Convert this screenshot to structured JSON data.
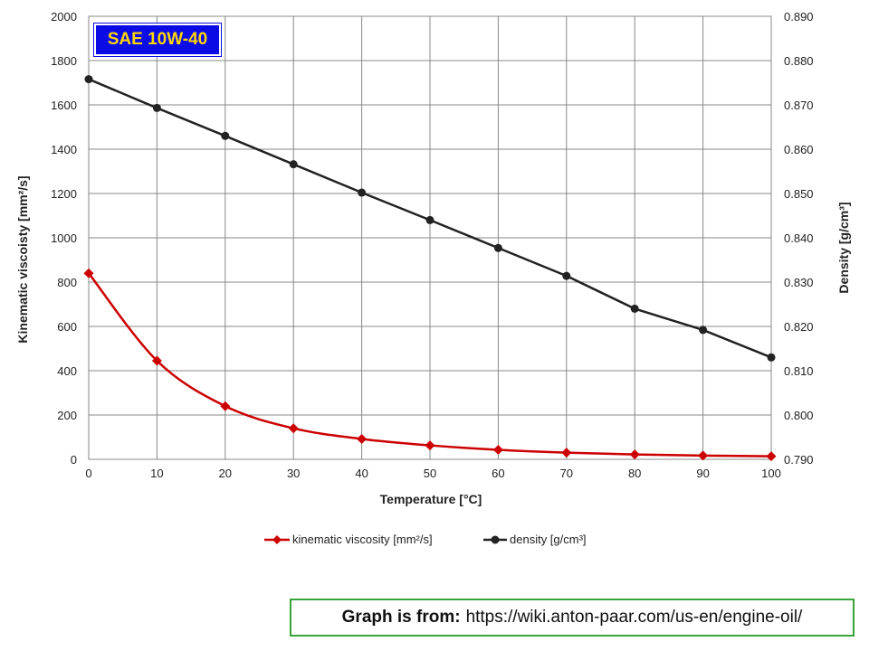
{
  "chart_data": {
    "type": "line",
    "title": "SAE 10W-40",
    "xlabel": "Temperature  [°C]",
    "ylabel_left": "Kinematic viscoisty  [mm²/s]",
    "ylabel_right": "Density  [g/cm³]",
    "x": [
      0,
      10,
      20,
      30,
      40,
      50,
      60,
      70,
      80,
      90,
      100
    ],
    "xlim": [
      0,
      100
    ],
    "x_ticks": [
      "0",
      "10",
      "20",
      "30",
      "40",
      "50",
      "60",
      "70",
      "80",
      "90",
      "100"
    ],
    "ylim_left": [
      0,
      2000
    ],
    "y_ticks_left": [
      "0",
      "200",
      "400",
      "600",
      "800",
      "1000",
      "1200",
      "1400",
      "1600",
      "1800",
      "2000"
    ],
    "ylim_right": [
      0.79,
      0.89
    ],
    "y_ticks_right": [
      "0.790",
      "0.800",
      "0.810",
      "0.820",
      "0.830",
      "0.840",
      "0.850",
      "0.860",
      "0.870",
      "0.880",
      "0.890"
    ],
    "grid": true,
    "legend_position": "bottom",
    "series": [
      {
        "name": "kinematic viscosity [mm²/s]",
        "axis": "left",
        "color": "#cc0000",
        "marker": "diamond",
        "values": [
          840,
          445,
          240,
          140,
          92,
          63,
          43,
          30,
          22,
          17,
          14
        ]
      },
      {
        "name": "density [g/cm³]",
        "axis": "right",
        "color": "#222222",
        "marker": "circle",
        "values": [
          0.8758,
          0.8693,
          0.863,
          0.8566,
          0.8502,
          0.844,
          0.8377,
          0.8314,
          0.824,
          0.8192,
          0.813
        ]
      }
    ]
  },
  "source": {
    "label": "Graph is from:",
    "url": "https://wiki.anton-paar.com/us-en/engine-oil/"
  }
}
